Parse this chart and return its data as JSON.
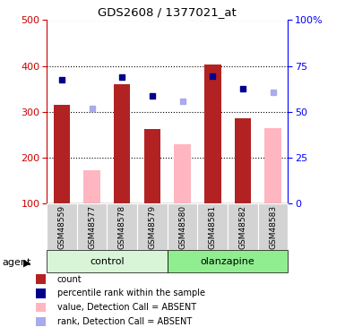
{
  "title": "GDS2608 / 1377021_at",
  "samples": [
    "GSM48559",
    "GSM48577",
    "GSM48578",
    "GSM48579",
    "GSM48580",
    "GSM48581",
    "GSM48582",
    "GSM48583"
  ],
  "count_present": [
    315,
    null,
    360,
    262,
    null,
    403,
    285,
    null
  ],
  "count_absent": [
    null,
    172,
    null,
    null,
    228,
    null,
    null,
    265
  ],
  "rank_present": [
    370,
    null,
    375,
    335,
    null,
    378,
    350,
    null
  ],
  "rank_absent": [
    null,
    308,
    null,
    null,
    322,
    null,
    null,
    342
  ],
  "ylim_left": [
    100,
    500
  ],
  "yticks_left": [
    100,
    200,
    300,
    400,
    500
  ],
  "yticks_right": [
    0,
    25,
    50,
    75,
    100
  ],
  "color_bar_present": "#b22222",
  "color_bar_absent": "#ffb6c1",
  "color_dot_present": "#00008b",
  "color_dot_absent": "#aaaaee",
  "color_control_light": "#d8f5d8",
  "color_control_dark": "#90ee90",
  "color_olanzapine_bg": "#56d456",
  "color_ticklabel_bg": "#d3d3d3",
  "legend_items": [
    "count",
    "percentile rank within the sample",
    "value, Detection Call = ABSENT",
    "rank, Detection Call = ABSENT"
  ]
}
